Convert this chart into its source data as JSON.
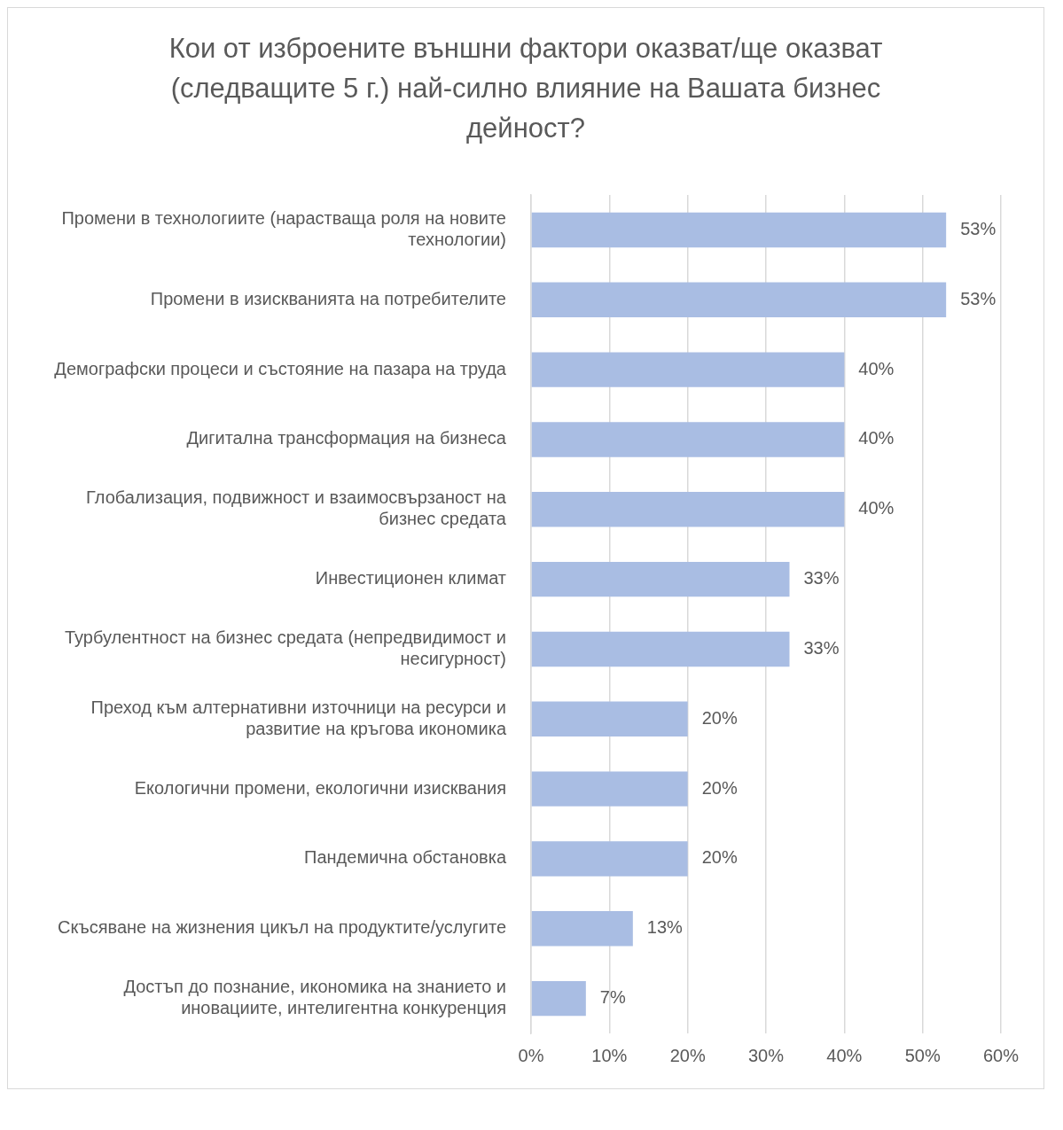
{
  "chart_data": {
    "type": "bar",
    "orientation": "horizontal",
    "title": "Кои от изброените външни фактори оказват/ще оказват (следващите 5 г.) най-силно влияние на Вашата бизнес дейност?",
    "categories": [
      "Промени в технологиите (нарастваща роля на новите технологии)",
      "Промени в изискванията на потребителите",
      "Демографски процеси и състояние на пазара на труда",
      "Дигитална трансформация на бизнеса",
      "Глобализация, подвижност и взаимосвързаност на бизнес средата",
      "Инвестиционен климат",
      "Турбулентност на бизнес средата (непредвидимост и несигурност)",
      "Преход към алтернативни източници на ресурси и развитие на кръгова икономика",
      "Екологични промени, екологични изисквания",
      "Пандемична обстановка",
      "Скъсяване на жизнения цикъл на продуктите/услугите",
      "Достъп до познание, икономика на знанието и иновациите, интелигентна конкуренция"
    ],
    "values": [
      53,
      53,
      40,
      40,
      40,
      33,
      33,
      20,
      20,
      20,
      13,
      7
    ],
    "value_labels": [
      "53%",
      "53%",
      "40%",
      "40%",
      "40%",
      "33%",
      "33%",
      "20%",
      "20%",
      "20%",
      "13%",
      "7%"
    ],
    "color": "#a9bde3",
    "xlim": [
      0,
      60
    ],
    "xticks": [
      {
        "value": 0,
        "label": "0%"
      },
      {
        "value": 10,
        "label": "10%"
      },
      {
        "value": 20,
        "label": "20%"
      },
      {
        "value": 30,
        "label": "30%"
      },
      {
        "value": 40,
        "label": "40%"
      },
      {
        "value": 50,
        "label": "50%"
      },
      {
        "value": 60,
        "label": "60%"
      }
    ],
    "grid": "x"
  }
}
